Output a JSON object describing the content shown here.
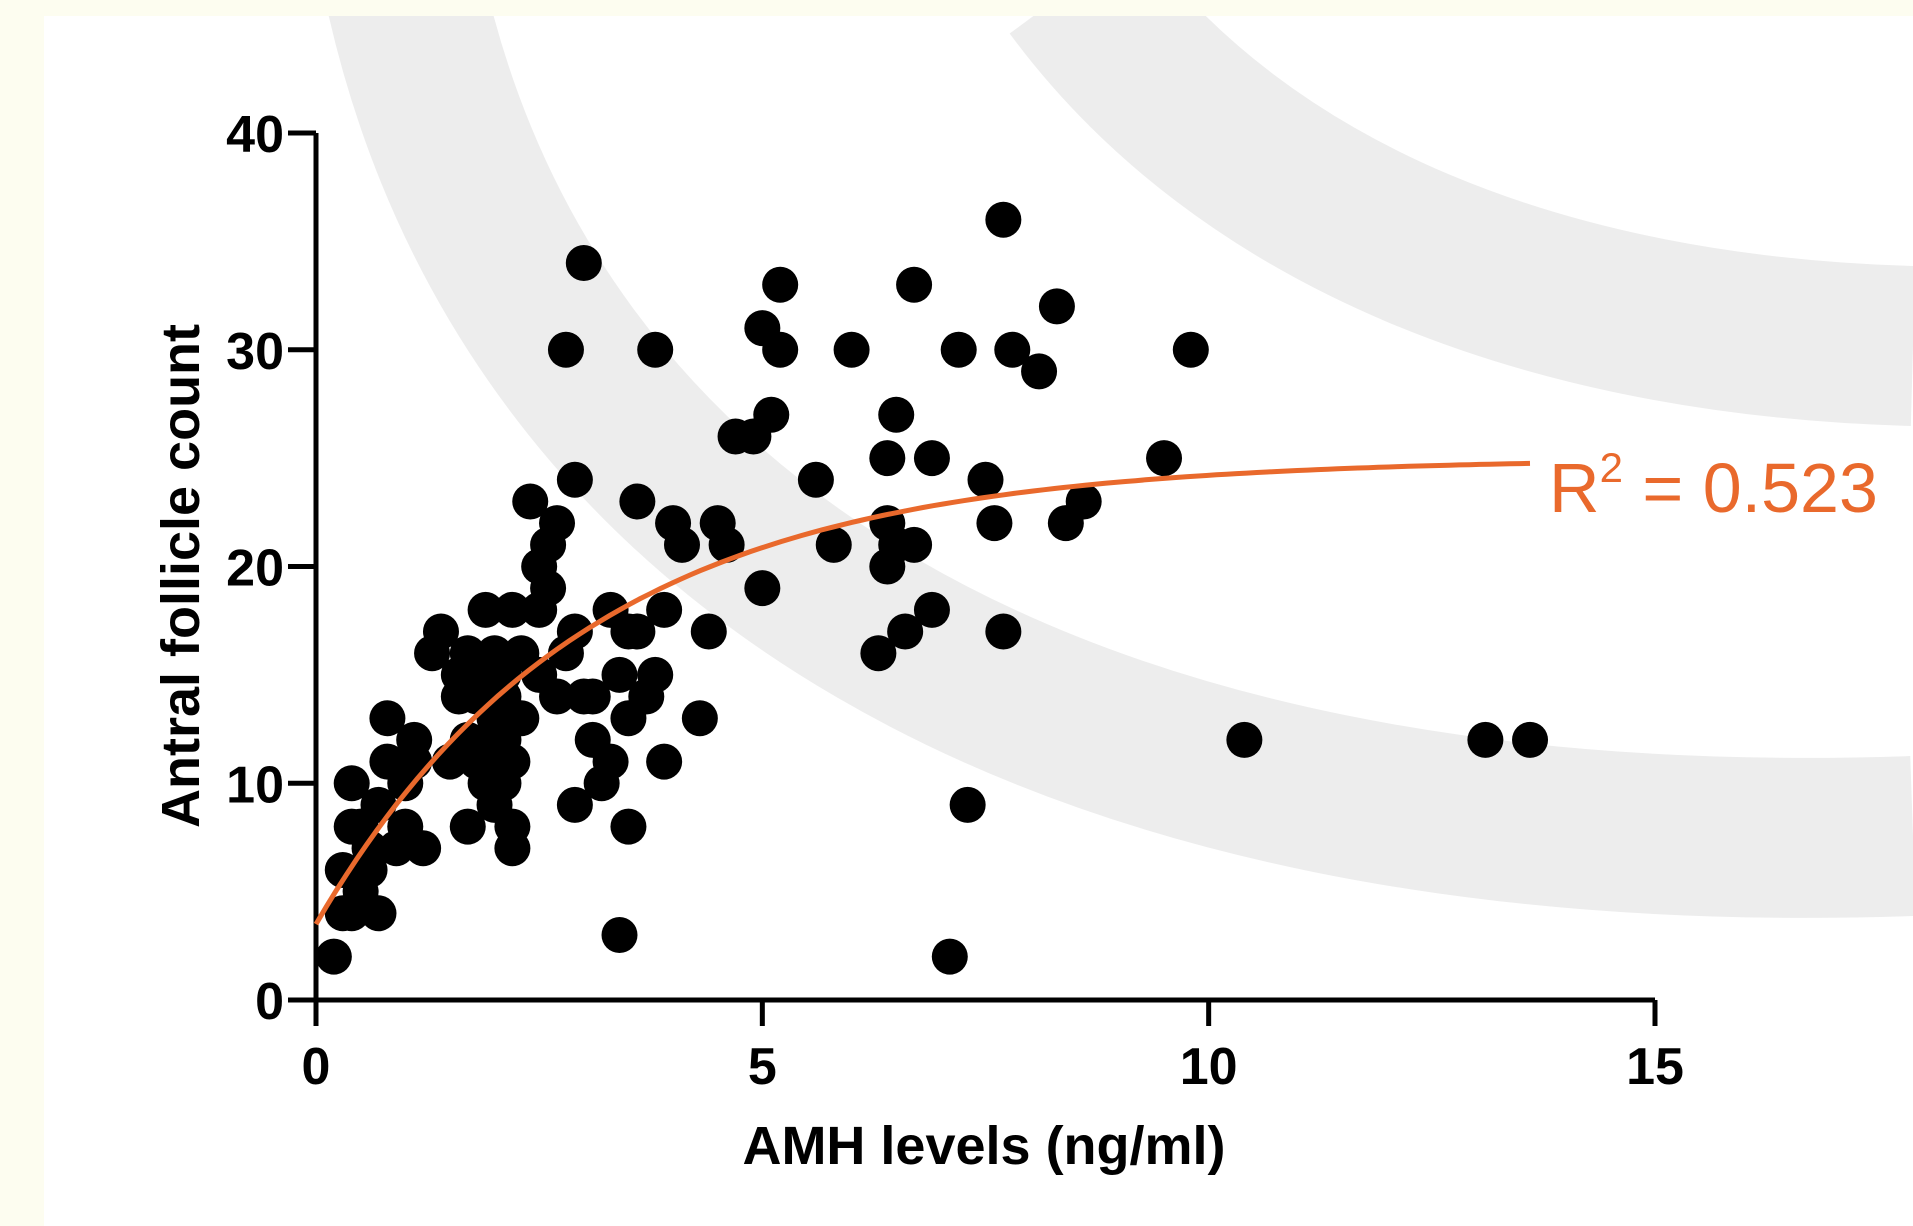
{
  "chart_data": {
    "type": "scatter",
    "title": "",
    "xlabel": "AMH levels (ng/ml)",
    "ylabel": "Antral follicle count",
    "xlim": [
      0,
      15
    ],
    "ylim": [
      0,
      40
    ],
    "xticks": [
      "0",
      "5",
      "10",
      "15"
    ],
    "yticks": [
      "0",
      "10",
      "20",
      "30",
      "40"
    ],
    "grid": false,
    "legend": "none",
    "points_color": "#000000",
    "series": [
      {
        "x": [
          0.2,
          0.3,
          0.3,
          0.4,
          0.4,
          0.4,
          0.5,
          0.5,
          0.6,
          0.6,
          0.7,
          0.7,
          0.8,
          0.8,
          0.9,
          1.0,
          1.0,
          1.1,
          1.1,
          1.2,
          1.3,
          1.4,
          1.5,
          1.6,
          1.6,
          1.7,
          1.7,
          1.7,
          1.8,
          1.8,
          1.9,
          1.9,
          1.9,
          2.0,
          2.0,
          2.0,
          2.0,
          2.0,
          2.1,
          2.1,
          2.1,
          2.1,
          2.2,
          2.2,
          2.2,
          2.2,
          2.3,
          2.3,
          2.4,
          2.5,
          2.5,
          2.5,
          2.6,
          2.6,
          2.7,
          2.7,
          2.8,
          2.8,
          2.9,
          2.9,
          2.9,
          3.0,
          3.0,
          3.1,
          3.1,
          3.2,
          3.3,
          3.3,
          3.4,
          3.4,
          3.5,
          3.5,
          3.5,
          3.6,
          3.6,
          3.7,
          3.8,
          3.8,
          3.9,
          3.9,
          4.0,
          4.1,
          4.3,
          4.4,
          4.5,
          4.6,
          4.7,
          4.9,
          5.0,
          5.0,
          5.1,
          5.2,
          5.2,
          5.6,
          5.8,
          6.0,
          6.3,
          6.4,
          6.4,
          6.4,
          6.5,
          6.5,
          6.6,
          6.7,
          6.7,
          6.9,
          6.9,
          7.1,
          7.2,
          7.3,
          7.5,
          7.6,
          7.7,
          7.7,
          7.8,
          8.1,
          8.3,
          8.4,
          8.6,
          9.5,
          9.8,
          10.4,
          13.1,
          13.6
        ],
        "y": [
          2,
          4,
          6,
          8,
          4,
          10,
          5,
          8,
          6,
          7,
          4,
          9,
          13,
          11,
          7,
          10,
          8,
          12,
          11,
          7,
          16,
          17,
          11,
          14,
          15,
          16,
          8,
          12,
          11,
          14,
          10,
          15,
          18,
          9,
          12,
          16,
          13,
          11,
          15,
          10,
          12,
          14,
          7,
          8,
          11,
          18,
          16,
          13,
          23,
          20,
          18,
          15,
          21,
          19,
          14,
          22,
          16,
          30,
          24,
          17,
          9,
          14,
          34,
          12,
          14,
          10,
          11,
          18,
          15,
          3,
          13,
          8,
          17,
          17,
          23,
          14,
          15,
          30,
          18,
          11,
          22,
          21,
          13,
          17,
          22,
          21,
          26,
          26,
          31,
          19,
          27,
          33,
          30,
          24,
          21,
          30,
          16,
          25,
          22,
          20,
          27,
          21,
          17,
          21,
          33,
          18,
          25,
          2,
          30,
          9,
          24,
          22,
          17,
          36,
          30,
          29,
          32,
          22,
          23,
          25,
          30,
          12,
          12,
          12
        ]
      }
    ],
    "fit": {
      "color": "#e9692c",
      "x_range": [
        0,
        13.6
      ],
      "plateau": 25,
      "y0": 3.5,
      "k": 0.33
    },
    "annotation": {
      "r2_label": "R",
      "r2_sup": "2",
      "r2_value": " = 0.523"
    }
  }
}
